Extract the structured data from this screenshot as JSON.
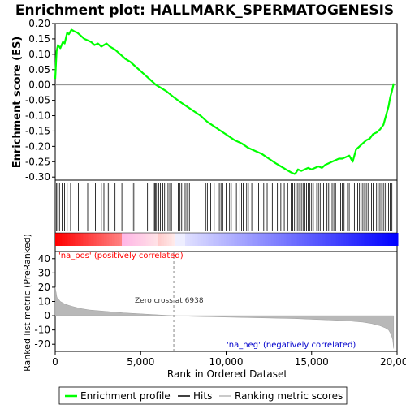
{
  "chart_data": {
    "type": "line",
    "title": "Enrichment plot: HALLMARK_SPERMATOGENESIS",
    "panels": {
      "es": {
        "ylabel": "Enrichment score (ES)",
        "ylim": [
          -0.31,
          0.2
        ],
        "yticks": [
          0.2,
          0.15,
          0.1,
          0.05,
          0.0,
          -0.05,
          -0.1,
          -0.15,
          -0.2,
          -0.25,
          -0.3
        ],
        "ytick_labels": [
          "0.20",
          "0.15",
          "0.10",
          "0.05",
          "0.00",
          "-0.05",
          "-0.10",
          "-0.15",
          "-0.20",
          "-0.25",
          "-0.30"
        ],
        "series": [
          {
            "name": "Enrichment profile",
            "color": "#00ff00",
            "x": [
              0,
              80,
              160,
              300,
              450,
              550,
              700,
              800,
              950,
              1100,
              1300,
              1500,
              1700,
              1900,
              2100,
              2300,
              2500,
              2700,
              2850,
              3000,
              3200,
              3500,
              3800,
              4100,
              4400,
              4700,
              5000,
              5300,
              5600,
              5900,
              6200,
              6500,
              6938,
              7300,
              7700,
              8100,
              8500,
              8900,
              9300,
              9700,
              10100,
              10500,
              10900,
              11300,
              11700,
              12100,
              12500,
              12900,
              13200,
              13500,
              13800,
              14000,
              14100,
              14200,
              14400,
              14600,
              14800,
              15000,
              15200,
              15400,
              15600,
              15800,
              16000,
              16200,
              16400,
              16600,
              16800,
              17000,
              17200,
              17400,
              17600,
              17800,
              18000,
              18200,
              18400,
              18600,
              18800,
              19000,
              19200,
              19300,
              19400,
              19500,
              19600,
              19700,
              19800
            ],
            "y": [
              0.02,
              0.11,
              0.13,
              0.12,
              0.14,
              0.135,
              0.17,
              0.165,
              0.18,
              0.175,
              0.17,
              0.16,
              0.15,
              0.145,
              0.14,
              0.13,
              0.135,
              0.125,
              0.13,
              0.135,
              0.125,
              0.115,
              0.1,
              0.085,
              0.075,
              0.06,
              0.045,
              0.03,
              0.015,
              0.0,
              -0.01,
              -0.02,
              -0.04,
              -0.055,
              -0.07,
              -0.085,
              -0.1,
              -0.12,
              -0.135,
              -0.15,
              -0.165,
              -0.18,
              -0.19,
              -0.205,
              -0.215,
              -0.225,
              -0.24,
              -0.255,
              -0.265,
              -0.275,
              -0.285,
              -0.29,
              -0.285,
              -0.275,
              -0.28,
              -0.275,
              -0.27,
              -0.275,
              -0.27,
              -0.265,
              -0.27,
              -0.26,
              -0.255,
              -0.25,
              -0.245,
              -0.24,
              -0.24,
              -0.235,
              -0.23,
              -0.25,
              -0.21,
              -0.2,
              -0.19,
              -0.18,
              -0.175,
              -0.16,
              -0.155,
              -0.145,
              -0.13,
              -0.11,
              -0.09,
              -0.07,
              -0.04,
              -0.02,
              0.005
            ]
          }
        ]
      },
      "metric": {
        "ylabel": "Ranked list metric (PreRanked)",
        "xlabel": "Rank in Ordered Dataset",
        "ylim": [
          -25,
          45
        ],
        "yticks": [
          40,
          30,
          20,
          10,
          0,
          -10,
          -20
        ],
        "ytick_labels": [
          "40",
          "30",
          "20",
          "10",
          "0",
          "-10",
          "-20"
        ],
        "xlim": [
          0,
          20000
        ],
        "xticks": [
          0,
          5000,
          10000,
          15000,
          20000
        ],
        "xtick_labels": [
          "0",
          "5,000",
          "10,000",
          "15,000",
          "20,000"
        ],
        "series": [
          {
            "name": "Ranking metric scores",
            "color": "#b8b8b8",
            "x": [
              0,
              100,
              300,
              600,
              1000,
              1500,
              2000,
              3000,
              4000,
              5000,
              6000,
              6938,
              8000,
              10000,
              12000,
              14000,
              15000,
              16000,
              17000,
              18000,
              18500,
              19000,
              19300,
              19500,
              19650,
              19750,
              19800
            ],
            "y": [
              20,
              13,
              10,
              8,
              6.5,
              5,
              4,
              3,
              2,
              1.3,
              0.6,
              0,
              -0.5,
              -1,
              -1.5,
              -2,
              -2.5,
              -3,
              -3.5,
              -4.5,
              -5.5,
              -7,
              -8.5,
              -10,
              -13,
              -17,
              -23
            ]
          }
        ],
        "zero_cross_label": "Zero cross at 6938",
        "zero_cross_x": 6938,
        "pos_label": "'na_pos' (positively correlated)",
        "neg_label": "'na_neg' (negatively correlated)"
      }
    },
    "hits_x": [
      80,
      150,
      250,
      400,
      550,
      700,
      900,
      1350,
      1900,
      2350,
      2450,
      2700,
      2850,
      3100,
      3200,
      3500,
      3900,
      4200,
      4500,
      4600,
      5400,
      5800,
      5850,
      5900,
      6000,
      6050,
      6150,
      6300,
      6400,
      6600,
      6700,
      6800,
      7200,
      7300,
      7400,
      7600,
      7700,
      7850,
      8000,
      8800,
      8900,
      9000,
      9100,
      9300,
      9600,
      9700,
      9800,
      10000,
      10200,
      10300,
      10600,
      10800,
      10900,
      11000,
      11200,
      11300,
      11500,
      11800,
      11900,
      12200,
      12400,
      12700,
      12800,
      13000,
      13200,
      13400,
      13600,
      13800,
      13900,
      14000,
      14100,
      14200,
      14300,
      14400,
      14500,
      14600,
      14700,
      14800,
      14900,
      15000,
      15100,
      15300,
      15400,
      15500,
      15700,
      15900,
      16000,
      16200,
      16300,
      16400,
      16700,
      16800,
      16900,
      17100,
      17200,
      17500,
      17600,
      17700,
      17800,
      17900,
      18000,
      18100,
      18200,
      18300,
      18500,
      18600,
      18800,
      18900,
      19000,
      19100,
      19200,
      19300,
      19400,
      19500,
      19600,
      19700
    ],
    "legend": {
      "items": [
        {
          "label": "Enrichment profile",
          "color": "#00ff00"
        },
        {
          "label": "Hits",
          "color": "#000000"
        },
        {
          "label": "Ranking metric scores",
          "color": "#b8b8b8"
        }
      ]
    },
    "colors": {
      "pos": "#ff0000",
      "neg": "#0000ff",
      "line": "#00ff00",
      "metric_fill": "#b8b8b8",
      "pos_label": "#ff0000",
      "neg_label": "#0000cc"
    }
  }
}
